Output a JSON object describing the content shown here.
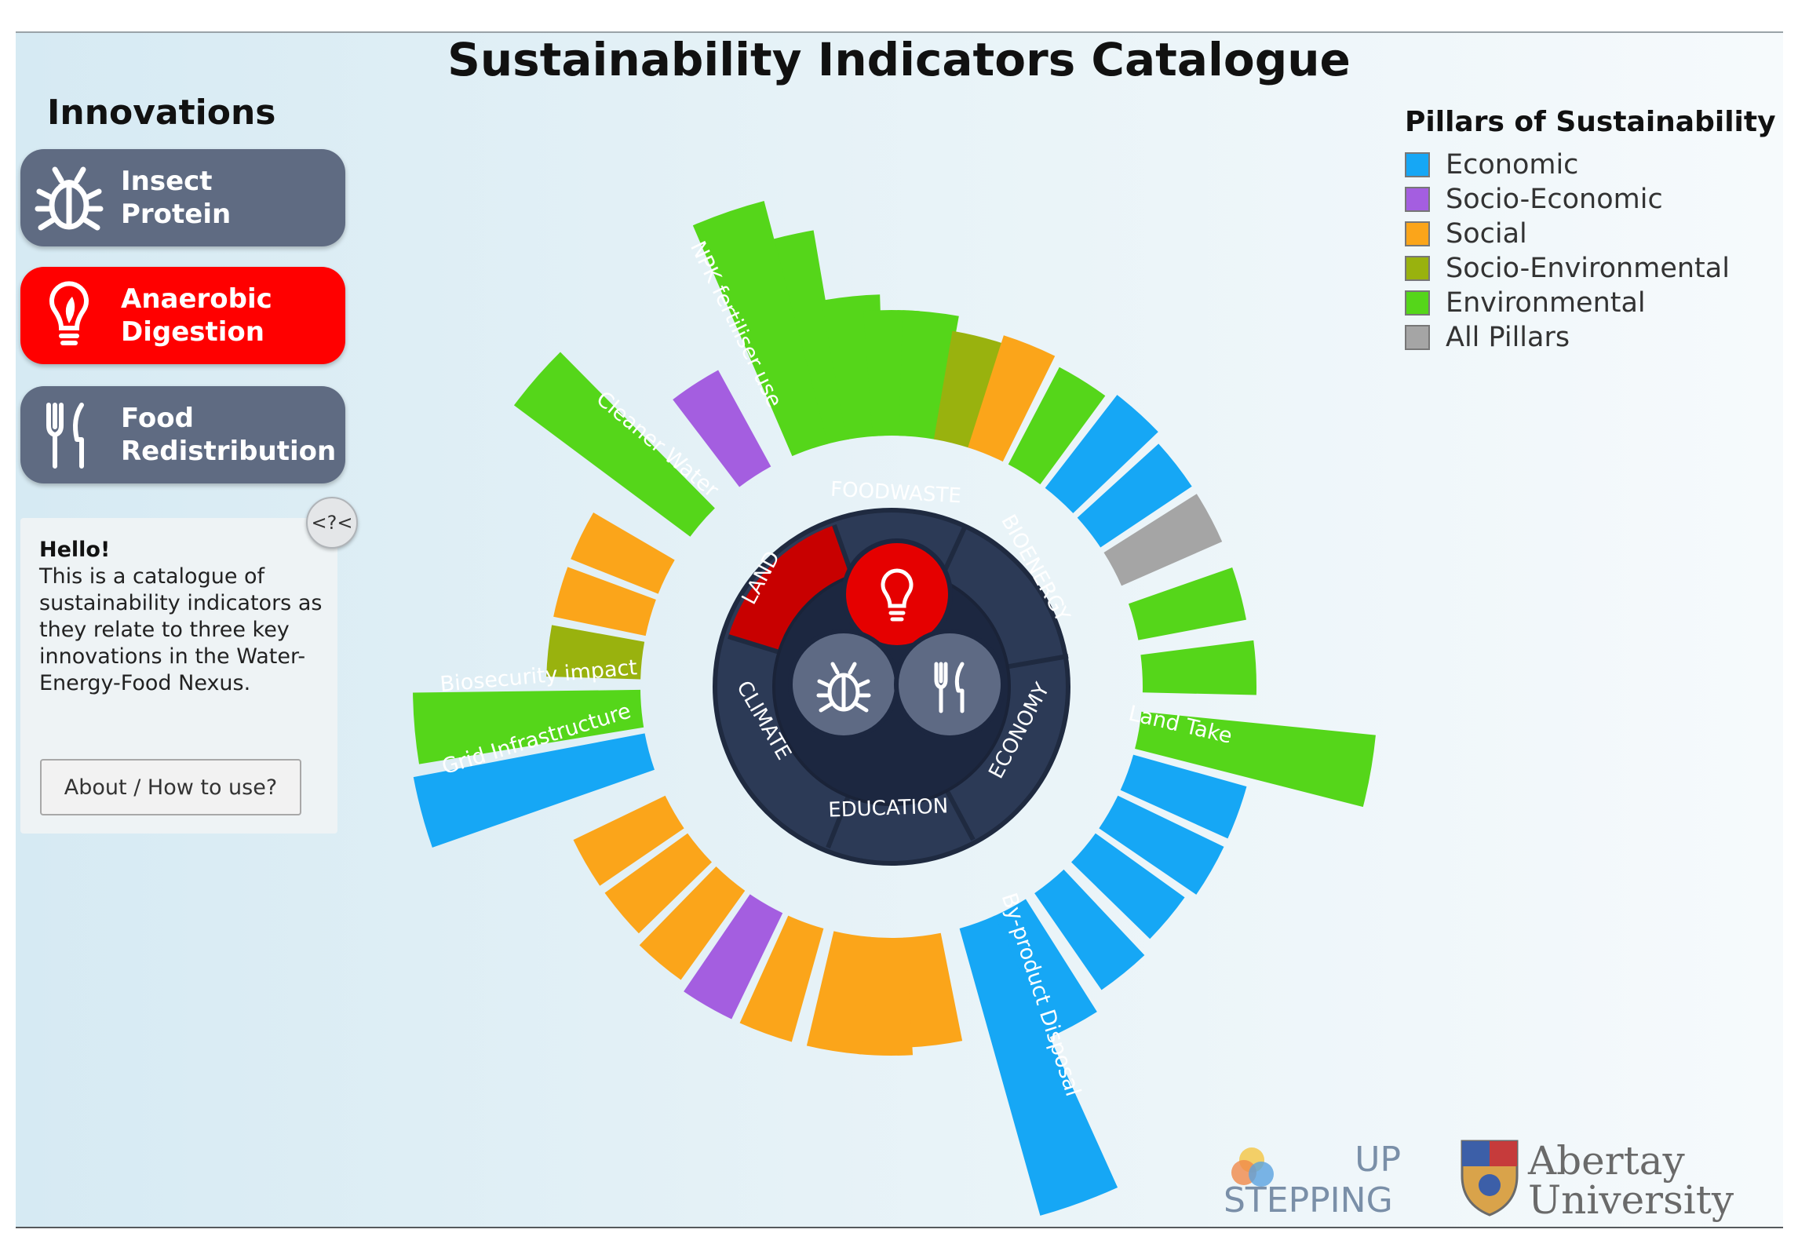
{
  "title": "Sustainability Indicators Catalogue",
  "innovations": {
    "heading": "Innovations",
    "items": [
      {
        "label": "Insect\nProtein",
        "icon": "bug-icon",
        "active": false
      },
      {
        "label": "Anaerobic\nDigestion",
        "icon": "lightbulb-leaf-icon",
        "active": true
      },
      {
        "label": "Food\nRedistribution",
        "icon": "fork-knife-icon",
        "active": false
      }
    ]
  },
  "info": {
    "collapse_label": "<?<",
    "greeting": "Hello!",
    "text": "This is a catalogue of sustainability indicators as they relate to three key innovations in the Water-Energy-Food Nexus.",
    "about_button": "About / How to use?"
  },
  "legend": {
    "title": "Pillars of Sustainability",
    "items": [
      {
        "label": "Economic",
        "color": "#16a7f5"
      },
      {
        "label": "Socio-Economic",
        "color": "#a45ee0"
      },
      {
        "label": "Social",
        "color": "#fba51a"
      },
      {
        "label": "Socio-Environmental",
        "color": "#99b20e"
      },
      {
        "label": "Environmental",
        "color": "#55d61a"
      },
      {
        "label": "All Pillars",
        "color": "#a5a5a5"
      }
    ]
  },
  "hub": {
    "categories": [
      "FOODWASTE",
      "BIOENERGY",
      "ECONOMY",
      "EDUCATION",
      "CLIMATE",
      "LAND"
    ],
    "selected_category": "LAND",
    "icons": [
      "lightbulb-leaf-icon",
      "bug-icon",
      "fork-knife-icon"
    ]
  },
  "indicator_labels": [
    "NPK fertiliser use",
    "Cleaner Water",
    "Biosecurity impact",
    "Grid Infrastructure",
    "Land Take",
    "By-product Disposal"
  ],
  "logos": {
    "stepping_top": "UP",
    "stepping_bottom": "STEPPING",
    "abertay_line1": "Abertay",
    "abertay_line2": "University"
  }
}
